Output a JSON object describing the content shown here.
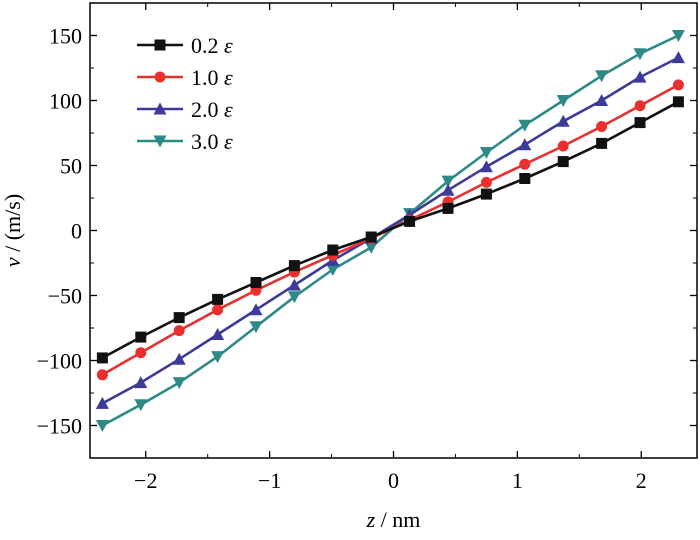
{
  "chart_data": {
    "type": "line",
    "xlabel": {
      "var": "z",
      "unit": " / nm"
    },
    "ylabel": {
      "var": "v",
      "unit": " / (m/s)"
    },
    "xlim": [
      -2.45,
      2.45
    ],
    "ylim": [
      -175,
      175
    ],
    "xticks": [
      -2,
      -1,
      0,
      1,
      2
    ],
    "yticks": [
      -150,
      -100,
      -50,
      0,
      50,
      100,
      150
    ],
    "xtick_labels": [
      "−2",
      "−1",
      "0",
      "1",
      "2"
    ],
    "ytick_labels": [
      "−150",
      "−100",
      "−50",
      "0",
      "50",
      "100",
      "150"
    ],
    "legend_position": "top-left",
    "x": [
      -2.35,
      -2.04,
      -1.73,
      -1.42,
      -1.11,
      -0.8,
      -0.49,
      -0.18,
      0.13,
      0.44,
      0.75,
      1.06,
      1.37,
      1.68,
      1.99,
      2.3
    ],
    "series": [
      {
        "name": "0.2",
        "symbol": "ε",
        "marker": "square",
        "color": "#111111",
        "values": [
          -98,
          -82,
          -67,
          -53,
          -40,
          -27,
          -15,
          -5,
          7,
          17,
          28,
          40,
          53,
          67,
          83,
          99
        ]
      },
      {
        "name": "1.0",
        "symbol": "ε",
        "marker": "circle",
        "color": "#e8312f",
        "values": [
          -111,
          -94,
          -77,
          -61,
          -46,
          -32,
          -19,
          -6,
          8,
          22,
          37,
          51,
          65,
          80,
          96,
          112
        ]
      },
      {
        "name": "2.0",
        "symbol": "ε",
        "marker": "triangle-up",
        "color": "#3d3b9a",
        "values": [
          -133,
          -117,
          -99,
          -80,
          -61,
          -42,
          -23,
          -6,
          12,
          31,
          49,
          66,
          84,
          100,
          118,
          133
        ]
      },
      {
        "name": "3.0",
        "symbol": "ε",
        "marker": "triangle-down",
        "color": "#2e8a86",
        "values": [
          -150,
          -134,
          -117,
          -97,
          -74,
          -51,
          -30,
          -13,
          13,
          38,
          60,
          81,
          100,
          119,
          136,
          150
        ]
      }
    ]
  }
}
